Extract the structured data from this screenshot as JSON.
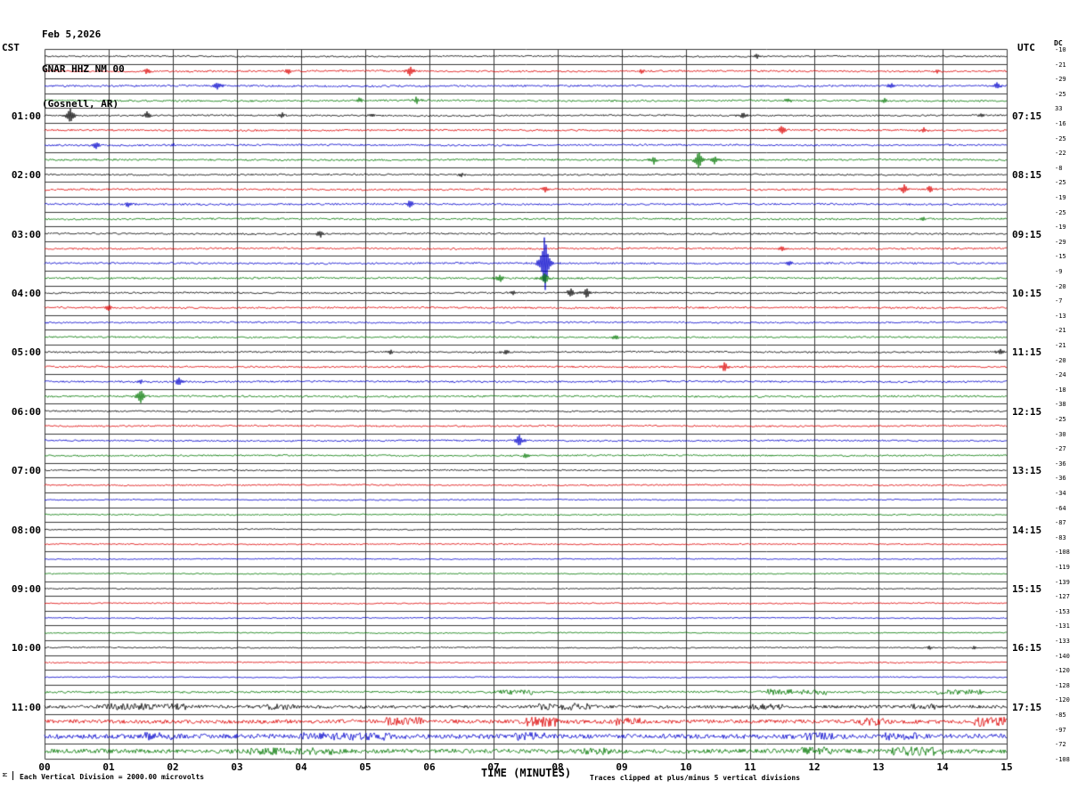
{
  "header": {
    "date": "Feb 5,2026",
    "station": "GNAR HHZ NM 00",
    "location": "(Gosnell, AR)"
  },
  "axes": {
    "left_label": "CST",
    "right_label": "UTC",
    "dc_label": "DC",
    "left_times": [
      "01:00",
      "02:00",
      "03:00",
      "04:00",
      "05:00",
      "06:00",
      "07:00",
      "08:00",
      "09:00",
      "10:00",
      "11:00"
    ],
    "right_times": [
      "07:15",
      "08:15",
      "09:15",
      "10:15",
      "11:15",
      "12:15",
      "13:15",
      "14:15",
      "15:15",
      "16:15",
      "17:15"
    ],
    "dc_values": [
      -10,
      -21,
      -29,
      -25,
      33,
      -16,
      -25,
      -22,
      -8,
      -25,
      -19,
      -25,
      -19,
      -29,
      -15,
      -9,
      -20,
      -7,
      -13,
      -21,
      -21,
      -20,
      -24,
      -18,
      -38,
      -25,
      -30,
      -27,
      -36,
      -36,
      -34,
      -64,
      -87,
      -83,
      -108,
      -119,
      -139,
      -127,
      -153,
      -131,
      -133,
      -140,
      -120,
      -128,
      -120,
      -85,
      -97,
      -72,
      -108
    ],
    "x_ticks": [
      "00",
      "01",
      "02",
      "03",
      "04",
      "05",
      "06",
      "07",
      "08",
      "09",
      "10",
      "11",
      "12",
      "13",
      "14",
      "15"
    ],
    "x_title": "TIME (MINUTES)"
  },
  "footer": {
    "left": "Each Vertical Division = 2000.00 microvolts",
    "right": "Traces clipped at plus/minus 5 vertical divisions",
    "corner_mark": "M"
  },
  "colors": {
    "trace_cycle": [
      "#000000",
      "#dd0000",
      "#0000cc",
      "#007700"
    ],
    "grid": "#3a3a3a"
  },
  "chart_data": {
    "type": "line",
    "subtype": "helicorder-seismogram",
    "xlabel": "TIME (MINUTES)",
    "x_range": [
      0,
      15
    ],
    "minutes_per_line": 15,
    "lines_per_hour": 4,
    "start_time_cst": "00:00",
    "grid": true,
    "rows": [
      {
        "t": "00:00",
        "n": 0.8,
        "s": [
          [
            11.1,
            2.5
          ]
        ],
        "b": []
      },
      {
        "t": "00:15",
        "n": 1.0,
        "s": [
          [
            1.6,
            3
          ],
          [
            3.8,
            3
          ],
          [
            5.7,
            5.5
          ],
          [
            9.3,
            3
          ],
          [
            13.9,
            2
          ]
        ],
        "b": []
      },
      {
        "t": "00:30",
        "n": 1.0,
        "s": [
          [
            2.7,
            4
          ],
          [
            13.2,
            3
          ],
          [
            14.85,
            3.5
          ]
        ],
        "b": []
      },
      {
        "t": "00:45",
        "n": 1.0,
        "s": [
          [
            4.9,
            3
          ],
          [
            5.8,
            4
          ],
          [
            11.6,
            2.5
          ],
          [
            13.1,
            2.5
          ]
        ],
        "b": []
      },
      {
        "t": "01:00",
        "n": 0.9,
        "s": [
          [
            0.4,
            9
          ],
          [
            1.6,
            4
          ],
          [
            3.7,
            3
          ],
          [
            5.1,
            2
          ],
          [
            10.9,
            4
          ],
          [
            14.6,
            2
          ]
        ],
        "b": []
      },
      {
        "t": "01:15",
        "n": 1.0,
        "s": [
          [
            11.5,
            5
          ],
          [
            13.7,
            3.5
          ]
        ],
        "b": []
      },
      {
        "t": "01:30",
        "n": 1.0,
        "s": [
          [
            0.8,
            4
          ],
          [
            2.0,
            2
          ]
        ],
        "b": []
      },
      {
        "t": "01:45",
        "n": 1.0,
        "s": [
          [
            9.5,
            4
          ],
          [
            10.2,
            10
          ],
          [
            10.45,
            5
          ]
        ],
        "b": []
      },
      {
        "t": "02:00",
        "n": 0.9,
        "s": [
          [
            6.5,
            2
          ]
        ],
        "b": []
      },
      {
        "t": "02:15",
        "n": 1.0,
        "s": [
          [
            7.8,
            3
          ],
          [
            13.4,
            5
          ],
          [
            13.8,
            4
          ]
        ],
        "b": []
      },
      {
        "t": "02:30",
        "n": 1.0,
        "s": [
          [
            1.3,
            3
          ],
          [
            5.7,
            4
          ]
        ],
        "b": []
      },
      {
        "t": "02:45",
        "n": 1.0,
        "s": [
          [
            13.7,
            3
          ]
        ],
        "b": []
      },
      {
        "t": "03:00",
        "n": 0.9,
        "s": [
          [
            4.3,
            4
          ]
        ],
        "b": []
      },
      {
        "t": "03:15",
        "n": 1.0,
        "s": [
          [
            11.5,
            2
          ]
        ],
        "b": []
      },
      {
        "t": "03:30",
        "n": 1.0,
        "s": [
          [
            7.8,
            34
          ],
          [
            11.6,
            3
          ]
        ],
        "b": []
      },
      {
        "t": "03:45",
        "n": 1.0,
        "s": [
          [
            7.1,
            5
          ],
          [
            7.8,
            6
          ]
        ],
        "b": []
      },
      {
        "t": "04:00",
        "n": 0.9,
        "s": [
          [
            7.3,
            3
          ],
          [
            8.2,
            5
          ],
          [
            8.45,
            6
          ]
        ],
        "b": []
      },
      {
        "t": "04:15",
        "n": 1.0,
        "s": [
          [
            1.0,
            3.5
          ]
        ],
        "b": []
      },
      {
        "t": "04:30",
        "n": 0.9,
        "s": [],
        "b": []
      },
      {
        "t": "04:45",
        "n": 0.9,
        "s": [
          [
            8.9,
            3
          ]
        ],
        "b": []
      },
      {
        "t": "05:00",
        "n": 0.9,
        "s": [
          [
            5.4,
            3
          ],
          [
            7.2,
            3
          ],
          [
            14.9,
            4
          ]
        ],
        "b": []
      },
      {
        "t": "05:15",
        "n": 1.0,
        "s": [
          [
            10.6,
            5
          ]
        ],
        "b": []
      },
      {
        "t": "05:30",
        "n": 1.0,
        "s": [
          [
            1.5,
            3
          ],
          [
            2.1,
            5
          ]
        ],
        "b": []
      },
      {
        "t": "05:45",
        "n": 1.0,
        "s": [
          [
            1.5,
            8
          ]
        ],
        "b": []
      },
      {
        "t": "06:00",
        "n": 0.9,
        "s": [],
        "b": []
      },
      {
        "t": "06:15",
        "n": 0.9,
        "s": [],
        "b": []
      },
      {
        "t": "06:30",
        "n": 0.9,
        "s": [
          [
            7.4,
            7
          ]
        ],
        "b": []
      },
      {
        "t": "06:45",
        "n": 0.9,
        "s": [
          [
            7.5,
            3
          ]
        ],
        "b": []
      },
      {
        "t": "07:00",
        "n": 0.8,
        "s": [],
        "b": []
      },
      {
        "t": "07:15",
        "n": 0.8,
        "s": [],
        "b": []
      },
      {
        "t": "07:30",
        "n": 0.7,
        "s": [],
        "b": []
      },
      {
        "t": "07:45",
        "n": 0.7,
        "s": [],
        "b": []
      },
      {
        "t": "08:00",
        "n": 0.6,
        "s": [],
        "b": []
      },
      {
        "t": "08:15",
        "n": 0.7,
        "s": [],
        "b": []
      },
      {
        "t": "08:30",
        "n": 0.6,
        "s": [],
        "b": []
      },
      {
        "t": "08:45",
        "n": 0.6,
        "s": [],
        "b": []
      },
      {
        "t": "09:00",
        "n": 0.6,
        "s": [],
        "b": []
      },
      {
        "t": "09:15",
        "n": 0.7,
        "s": [],
        "b": []
      },
      {
        "t": "09:30",
        "n": 0.6,
        "s": [],
        "b": []
      },
      {
        "t": "09:45",
        "n": 0.6,
        "s": [],
        "b": []
      },
      {
        "t": "10:00",
        "n": 0.7,
        "s": [
          [
            13.8,
            2
          ],
          [
            14.5,
            2
          ]
        ],
        "b": []
      },
      {
        "t": "10:15",
        "n": 0.7,
        "s": [],
        "b": []
      },
      {
        "t": "10:30",
        "n": 0.6,
        "s": [],
        "b": []
      },
      {
        "t": "10:45",
        "n": 1.1,
        "s": [],
        "b": [
          [
            7.0,
            7.6,
            2.5
          ],
          [
            11.2,
            12.2,
            3.0
          ],
          [
            13.9,
            14.6,
            2.5
          ]
        ]
      },
      {
        "t": "11:00",
        "n": 1.7,
        "s": [],
        "b": [
          [
            0.8,
            2.2,
            2.2
          ],
          [
            3.4,
            3.9,
            2.0
          ],
          [
            7.7,
            8.5,
            2.4
          ],
          [
            11.0,
            11.5,
            2.0
          ],
          [
            13.4,
            13.9,
            2.0
          ]
        ]
      },
      {
        "t": "11:15",
        "n": 2.1,
        "s": [],
        "b": [
          [
            5.3,
            5.9,
            2.2
          ],
          [
            7.5,
            8.0,
            2.6
          ],
          [
            8.9,
            9.3,
            2.0
          ],
          [
            12.7,
            13.2,
            2.2
          ],
          [
            14.5,
            15.0,
            2.6
          ]
        ]
      },
      {
        "t": "11:30",
        "n": 2.5,
        "s": [],
        "b": [
          [
            1.5,
            2.0,
            1.8
          ],
          [
            4.0,
            5.4,
            1.8
          ],
          [
            7.3,
            7.8,
            1.8
          ],
          [
            11.8,
            12.3,
            1.8
          ],
          [
            13.1,
            13.6,
            1.8
          ]
        ]
      },
      {
        "t": "11:45",
        "n": 2.3,
        "s": [],
        "b": [
          [
            3.2,
            4.6,
            1.8
          ],
          [
            8.3,
            8.8,
            1.8
          ],
          [
            11.8,
            12.3,
            2.2
          ],
          [
            13.2,
            14.0,
            2.2
          ]
        ]
      }
    ]
  }
}
